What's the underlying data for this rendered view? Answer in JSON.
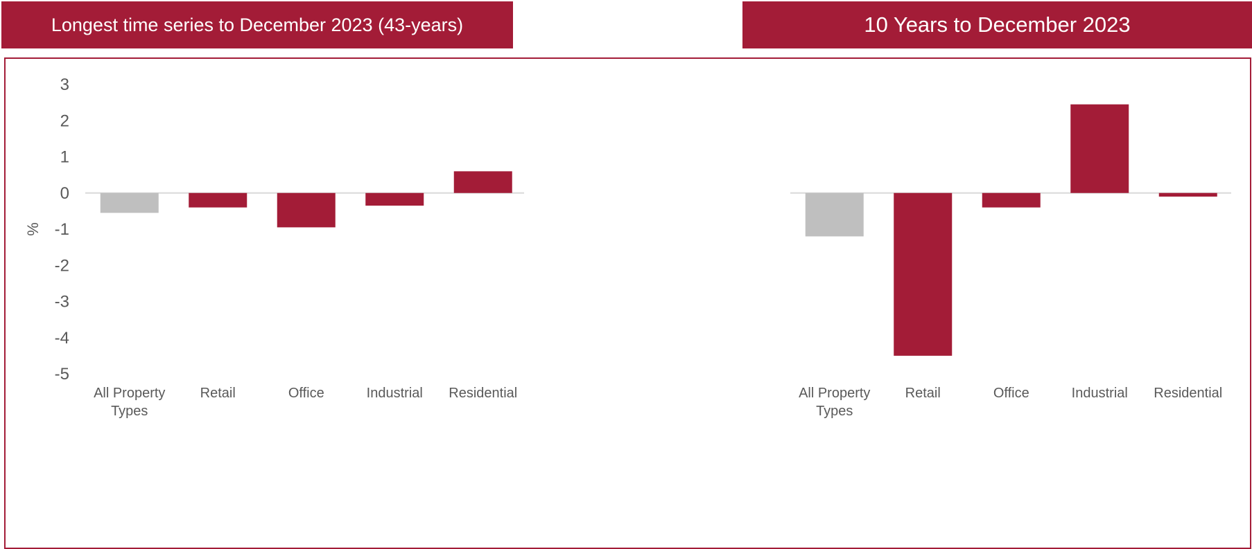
{
  "colors": {
    "accent": "#A31C37",
    "neutral": "#BFBFBF",
    "axis_text": "#595959",
    "zero_line": "#D9D9D9"
  },
  "header": {
    "left_title": "Longest time series to December 2023 (43-years)",
    "right_title": "10 Years to December 2023"
  },
  "chart_data": {
    "type": "bar",
    "ylabel": "%",
    "ylim": [
      -5,
      3
    ],
    "yticks": [
      3,
      2,
      1,
      0,
      -1,
      -2,
      -3,
      -4,
      -5
    ],
    "grid": false,
    "legend": "none",
    "groups": [
      {
        "name": "Longest time series to December 2023 (43-years)",
        "categories": [
          "All Property Types",
          "Retail",
          "Office",
          "Industrial",
          "Residential"
        ],
        "category_lines": [
          [
            "All Property",
            "Types"
          ],
          [
            "Retail"
          ],
          [
            "Office"
          ],
          [
            "Industrial"
          ],
          [
            "Residential"
          ]
        ],
        "values": [
          -0.55,
          -0.4,
          -0.95,
          -0.35,
          0.6
        ],
        "bar_colors": [
          "#BFBFBF",
          "#A31C37",
          "#A31C37",
          "#A31C37",
          "#A31C37"
        ]
      },
      {
        "name": "10 Years to December 2023",
        "categories": [
          "All Property Types",
          "Retail",
          "Office",
          "Industrial",
          "Residential"
        ],
        "category_lines": [
          [
            "All Property",
            "Types"
          ],
          [
            "Retail"
          ],
          [
            "Office"
          ],
          [
            "Industrial"
          ],
          [
            "Residential"
          ]
        ],
        "values": [
          -1.2,
          -4.5,
          -0.4,
          2.45,
          -0.1
        ],
        "bar_colors": [
          "#BFBFBF",
          "#A31C37",
          "#A31C37",
          "#A31C37",
          "#A31C37"
        ]
      }
    ]
  }
}
